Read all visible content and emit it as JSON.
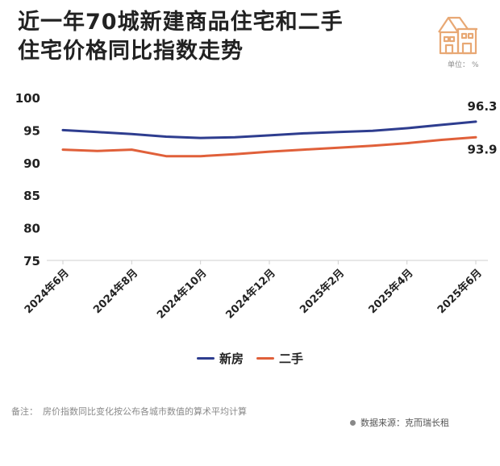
{
  "header": {
    "title_line1": "近一年70城新建商品住宅和二手",
    "title_line2": "住宅价格同比指数走势",
    "unit_label": "单位：",
    "unit_value": "%"
  },
  "footer": {
    "note_label": "备注：",
    "note_text": "房价指数同比变化按公布各城市数值的算术平均计算",
    "source": "数据来源：克而瑞长租"
  },
  "colors": {
    "new_house": "#2e3d8f",
    "second_hand": "#e0603a",
    "logo": "#e8a874"
  },
  "chart_data": {
    "type": "line",
    "title": "近一年70城新建商品住宅和二手住宅价格同比指数走势",
    "xlabel": "",
    "ylabel": "",
    "ylim": [
      75,
      100
    ],
    "yticks": [
      "100",
      "95",
      "90",
      "85",
      "80",
      "75"
    ],
    "grid": false,
    "legend_position": "bottom",
    "x_ticks": [
      "2024年6月",
      "2024年8月",
      "2024年10月",
      "2024年12月",
      "2025年2月",
      "2025年4月",
      "2025年6月"
    ],
    "x": [
      "2024-06",
      "2024-07",
      "2024-08",
      "2024-09",
      "2024-10",
      "2024-11",
      "2024-12",
      "2025-01",
      "2025-02",
      "2025-03",
      "2025-04",
      "2025-05",
      "2025-06"
    ],
    "series": [
      {
        "name": "新房",
        "color": "#2e3d8f",
        "values": [
          95.0,
          94.7,
          94.4,
          94.0,
          93.8,
          93.9,
          94.2,
          94.5,
          94.7,
          94.9,
          95.3,
          95.8,
          96.3
        ],
        "end_label": "96.3"
      },
      {
        "name": "二手",
        "color": "#e0603a",
        "values": [
          92.0,
          91.8,
          92.0,
          91.0,
          91.0,
          91.3,
          91.7,
          92.0,
          92.3,
          92.6,
          93.0,
          93.5,
          93.9
        ],
        "end_label": "93.9"
      }
    ]
  }
}
